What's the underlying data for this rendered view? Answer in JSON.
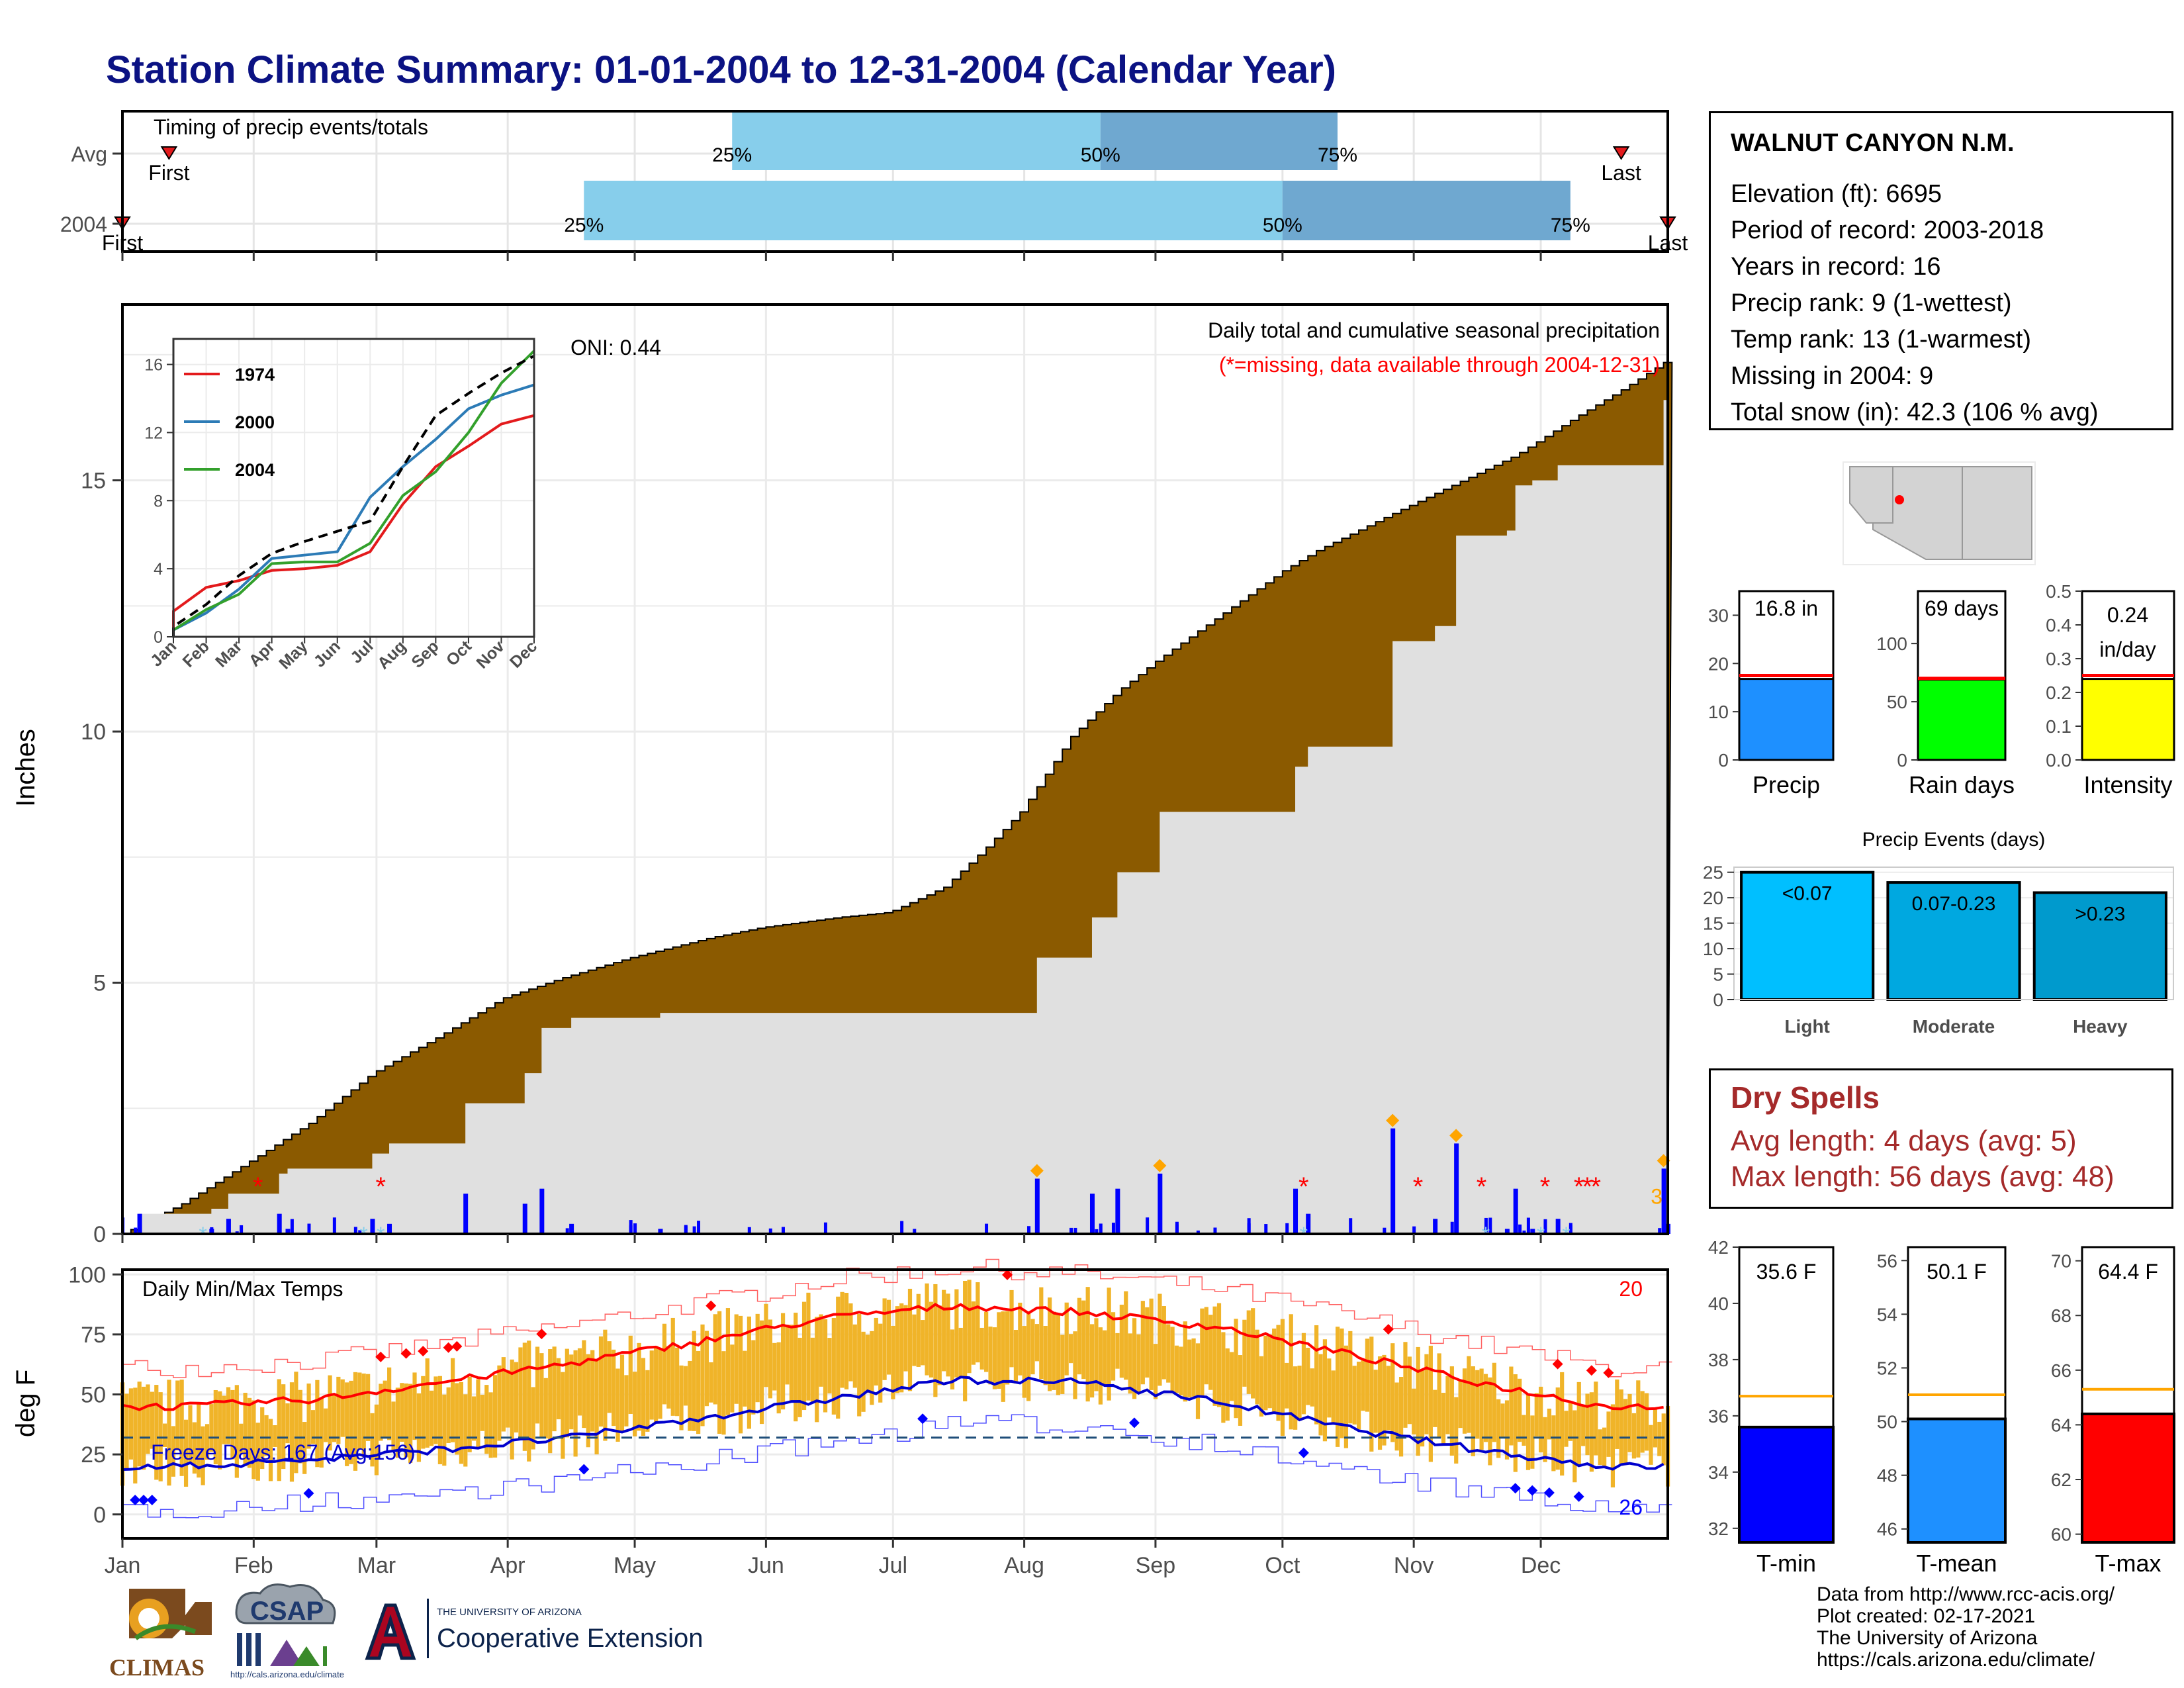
{
  "header": {
    "title": "Station Climate Summary: 01-01-2004 to 12-31-2004 (Calendar Year)"
  },
  "timing_panel": {
    "label": "Timing of precip events/totals",
    "rows": [
      {
        "name": "Avg",
        "first_label": "First",
        "last_label": "Last",
        "first_day": 12,
        "p25_day": 145,
        "p50_day": 232,
        "p75_day": 288,
        "last_day": 355
      },
      {
        "name": "2004",
        "first_label": "First",
        "last_label": "Last",
        "first_day": 1,
        "p25_day": 110,
        "p50_day": 275,
        "p75_day": 343,
        "last_day": 366
      }
    ],
    "p25_label": "25%",
    "p50_label": "50%",
    "p75_label": "75%",
    "colors": {
      "q1": "#87ceeb",
      "q2": "#6fa8d0",
      "marker": "#e31a1c"
    }
  },
  "station_info": {
    "name": "WALNUT CANYON N.M.",
    "lines": [
      "Elevation (ft): 6695",
      "Period of record: 2003-2018",
      "Years in record: 16",
      "Precip rank: 9 (1-wettest)",
      "Temp rank: 13 (1-warmest)",
      "Missing in 2004: 9",
      "Total snow (in): 42.3 (106 % avg)"
    ]
  },
  "precip_panel": {
    "ylabel": "Inches",
    "title_line1": "Daily total and cumulative seasonal precipitation",
    "title_line2": "(*=missing, data available through 2004-12-31)",
    "oni_label": "ONI: 0.44",
    "colors": {
      "fill_gap": "#8b5a00",
      "fill_base": "#e0e0e0",
      "observed_line": "#0000ff",
      "missing": "#ff0000",
      "snow": "#87ceeb",
      "extreme": "#ffa500"
    },
    "extreme_count_label": "3"
  },
  "inset_chart": {
    "legend": [
      "1974",
      "2000",
      "2004"
    ],
    "colors": [
      "#e31a1c",
      "#2c7bb6",
      "#33a02c"
    ]
  },
  "summary_bars": {
    "precip": {
      "label": "Precip",
      "value_label": "16.8 in",
      "value": 16.8,
      "avg": 17.5,
      "ymax": 35,
      "ticks": [
        0,
        10,
        20,
        30
      ],
      "color": "#1e90ff"
    },
    "rain_days": {
      "label": "Rain days",
      "value_label": "69 days",
      "value": 69,
      "avg": 70,
      "ymax": 145,
      "ticks": [
        0,
        50,
        100
      ],
      "color": "#00ff00"
    },
    "intensity": {
      "label": "Intensity",
      "value_label_1": "0.24",
      "value_label_2": "in/day",
      "value": 0.24,
      "avg": 0.25,
      "ymax": 0.5,
      "ticks": [
        "0.0",
        "0.1",
        "0.2",
        "0.3",
        "0.4",
        "0.5"
      ],
      "color": "#ffff00"
    }
  },
  "precip_events": {
    "title": "Precip Events (days)",
    "categories": [
      "Light",
      "Moderate",
      "Heavy"
    ],
    "values": [
      25,
      23,
      21
    ],
    "value_labels": [
      "<0.07",
      "0.07-0.23",
      ">0.23"
    ],
    "ticks": [
      0,
      5,
      10,
      15,
      20,
      25
    ],
    "colors": [
      "#00bfff",
      "#00a8e0",
      "#009acd"
    ]
  },
  "dry_spells": {
    "title": "Dry Spells",
    "avg_line": "Avg length: 4 days (avg: 5)",
    "max_line": "Max length: 56 days (avg: 48)"
  },
  "temp_panel": {
    "ylabel": "deg F",
    "label": "Daily Min/Max Temps",
    "freeze_label": "Freeze Days: 167 (Avg:156)",
    "high_extreme_count": "20",
    "low_extreme_count": "26",
    "freeze_line_value": 32,
    "colors": {
      "bars": "#f0b429",
      "tmax_avg": "#ff0000",
      "tmin_avg": "#0000cd",
      "freeze": "#1f4e79"
    }
  },
  "temp_summary": {
    "tmin": {
      "label": "T-min",
      "value_label": "35.6 F",
      "value": 35.6,
      "avg": 36.7,
      "ymin": 31.5,
      "ymax": 42,
      "ticks": [
        32,
        34,
        36,
        38,
        40,
        42
      ],
      "color": "#0000ff"
    },
    "tmean": {
      "label": "T-mean",
      "value_label": "50.1 F",
      "value": 50.1,
      "avg": 51.0,
      "ymin": 45.5,
      "ymax": 56.5,
      "ticks": [
        46,
        48,
        50,
        52,
        54,
        56
      ],
      "color": "#1e90ff"
    },
    "tmax": {
      "label": "T-max",
      "value_label": "64.4 F",
      "value": 64.4,
      "avg": 65.3,
      "ymin": 59.7,
      "ymax": 70.5,
      "ticks": [
        60,
        62,
        64,
        66,
        68,
        70
      ],
      "color": "#ff0000"
    }
  },
  "months": [
    "Jan",
    "Feb",
    "Mar",
    "Apr",
    "May",
    "Jun",
    "Jul",
    "Aug",
    "Sep",
    "Oct",
    "Nov",
    "Dec"
  ],
  "credits": [
    "Data from http://www.rcc-acis.org/",
    "Plot created: 02-17-2021",
    "The University of Arizona",
    "https://cals.arizona.edu/climate/"
  ],
  "logos": {
    "climas": "CLIMAS",
    "csap": "CSAP",
    "csap_url": "http://cals.arizona.edu/climate",
    "ua_small": "THE UNIVERSITY OF ARIZONA",
    "ua_large": "Cooperative Extension"
  },
  "chart_data": [
    {
      "type": "area",
      "title": "Daily total and cumulative seasonal precipitation",
      "ylabel": "Inches",
      "ylim": [
        0,
        18.5
      ],
      "x_axis": "month of 2004",
      "x_ticks": [
        "Jan",
        "Feb",
        "Mar",
        "Apr",
        "May",
        "Jun",
        "Jul",
        "Aug",
        "Sep",
        "Oct",
        "Nov",
        "Dec"
      ],
      "y_ticks": [
        0,
        5,
        10,
        15
      ],
      "series": [
        {
          "name": "cumulative average (top of brown)",
          "x_day": [
            1,
            15,
            32,
            45,
            60,
            75,
            91,
            105,
            121,
            140,
            152,
            170,
            182,
            195,
            205,
            213,
            225,
            236,
            245,
            255,
            265,
            275,
            283,
            300,
            315,
            330,
            345,
            355,
            366
          ],
          "values": [
            0.0,
            0.6,
            1.5,
            2.2,
            3.2,
            3.9,
            4.7,
            5.1,
            5.5,
            5.9,
            6.1,
            6.3,
            6.4,
            6.9,
            7.7,
            8.4,
            9.9,
            10.8,
            11.4,
            12.0,
            12.6,
            13.2,
            13.6,
            14.3,
            14.9,
            15.5,
            16.3,
            16.8,
            17.4
          ]
        },
        {
          "name": "cumulative observed 2004 (blue step)",
          "x_day": [
            1,
            5,
            22,
            26,
            38,
            40,
            60,
            64,
            82,
            96,
            100,
            107,
            128,
            168,
            190,
            206,
            217,
            230,
            236,
            246,
            262,
            278,
            281,
            299,
            301,
            311,
            316,
            328,
            330,
            334,
            340,
            365,
            366
          ],
          "values": [
            0.0,
            0.4,
            0.5,
            0.8,
            1.2,
            1.3,
            1.6,
            1.8,
            2.6,
            3.2,
            4.1,
            4.3,
            4.4,
            4.4,
            4.4,
            4.4,
            5.5,
            6.3,
            7.2,
            8.4,
            8.4,
            9.3,
            9.7,
            9.7,
            11.8,
            12.1,
            13.9,
            14.0,
            14.9,
            15.0,
            15.3,
            16.6,
            16.8
          ]
        }
      ],
      "missing_days": [
        33,
        62,
        280,
        307,
        322,
        337,
        345,
        347,
        349
      ],
      "extremes_count": 3
    },
    {
      "type": "line",
      "title": "inset cumulative precipitation",
      "categories": [
        "Jan",
        "Feb",
        "Mar",
        "Apr",
        "May",
        "Jun",
        "Jul",
        "Aug",
        "Sep",
        "Oct",
        "Nov",
        "Dec"
      ],
      "ylim": [
        0,
        17.5
      ],
      "y_ticks": [
        0,
        4,
        8,
        12,
        16
      ],
      "series": [
        {
          "name": "1974",
          "values": [
            1.5,
            2.9,
            3.3,
            3.9,
            4.0,
            4.2,
            5.0,
            7.8,
            10.0,
            11.2,
            12.5,
            13.0
          ]
        },
        {
          "name": "2000",
          "values": [
            0.4,
            1.4,
            2.8,
            4.6,
            4.8,
            5.0,
            8.2,
            10.0,
            11.6,
            13.4,
            14.2,
            14.8
          ]
        },
        {
          "name": "2004",
          "values": [
            0.4,
            1.6,
            2.5,
            4.3,
            4.4,
            4.4,
            5.5,
            8.3,
            9.7,
            12.0,
            14.9,
            16.8
          ]
        },
        {
          "name": "avg",
          "values": [
            0.6,
            1.9,
            3.6,
            4.9,
            5.6,
            6.2,
            6.8,
            10.0,
            13.0,
            14.3,
            15.5,
            16.5
          ]
        }
      ]
    },
    {
      "type": "bar",
      "title": "Precip Events (days)",
      "categories": [
        "Light",
        "Moderate",
        "Heavy"
      ],
      "values": [
        25,
        23,
        21
      ],
      "ylim": [
        0,
        26
      ]
    },
    {
      "type": "bar",
      "categories": [
        "Precip",
        "Rain days",
        "Intensity"
      ],
      "values": [
        16.8,
        69,
        0.24
      ]
    },
    {
      "type": "bar",
      "categories": [
        "T-min",
        "T-mean",
        "T-max"
      ],
      "values": [
        35.6,
        50.1,
        64.4
      ]
    },
    {
      "type": "line",
      "title": "Daily Min/Max Temps",
      "ylabel": "deg F",
      "ylim": [
        -10,
        102
      ],
      "y_ticks": [
        0,
        25,
        50,
        75,
        100
      ],
      "x_axis": "month of 2004",
      "series": [
        {
          "name": "avg max",
          "x_month": [
            "Jan",
            "Feb",
            "Mar",
            "Apr",
            "May",
            "Jun",
            "Jul",
            "Aug",
            "Sep",
            "Oct",
            "Nov",
            "Dec"
          ],
          "values": [
            45,
            48,
            55,
            63,
            72,
            82,
            87,
            84,
            78,
            67,
            55,
            45
          ]
        },
        {
          "name": "avg min",
          "x_month": [
            "Jan",
            "Feb",
            "Mar",
            "Apr",
            "May",
            "Jun",
            "Jul",
            "Aug",
            "Sep",
            "Oct",
            "Nov",
            "Dec"
          ],
          "values": [
            20,
            23,
            27,
            32,
            40,
            48,
            56,
            55,
            47,
            36,
            27,
            20
          ]
        }
      ],
      "freeze_line": 32,
      "freeze_days": 167,
      "freeze_days_avg": 156
    }
  ]
}
